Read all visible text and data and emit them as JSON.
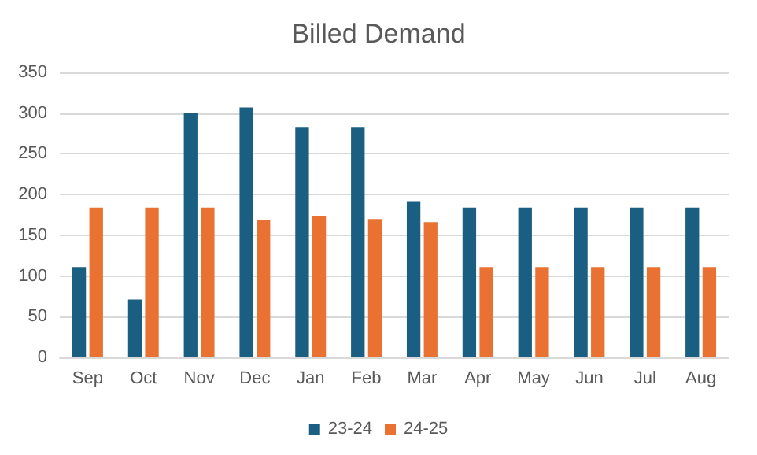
{
  "chart_data": {
    "type": "bar",
    "title": "Billed Demand",
    "categories": [
      "Sep",
      "Oct",
      "Nov",
      "Dec",
      "Jan",
      "Feb",
      "Mar",
      "Apr",
      "May",
      "Jun",
      "Jul",
      "Aug"
    ],
    "series": [
      {
        "name": "23-24",
        "color": "#1a5e82",
        "values": [
          111,
          71,
          300,
          307,
          283,
          283,
          192,
          184,
          184,
          184,
          184,
          184
        ]
      },
      {
        "name": "24-25",
        "color": "#e97132",
        "values": [
          184,
          184,
          184,
          169,
          174,
          170,
          166,
          111,
          111,
          111,
          111,
          111
        ]
      }
    ],
    "ylim": [
      0,
      350
    ],
    "yticks": [
      0,
      50,
      100,
      150,
      200,
      250,
      300,
      350
    ],
    "grid": "y",
    "legend": "bottom"
  }
}
